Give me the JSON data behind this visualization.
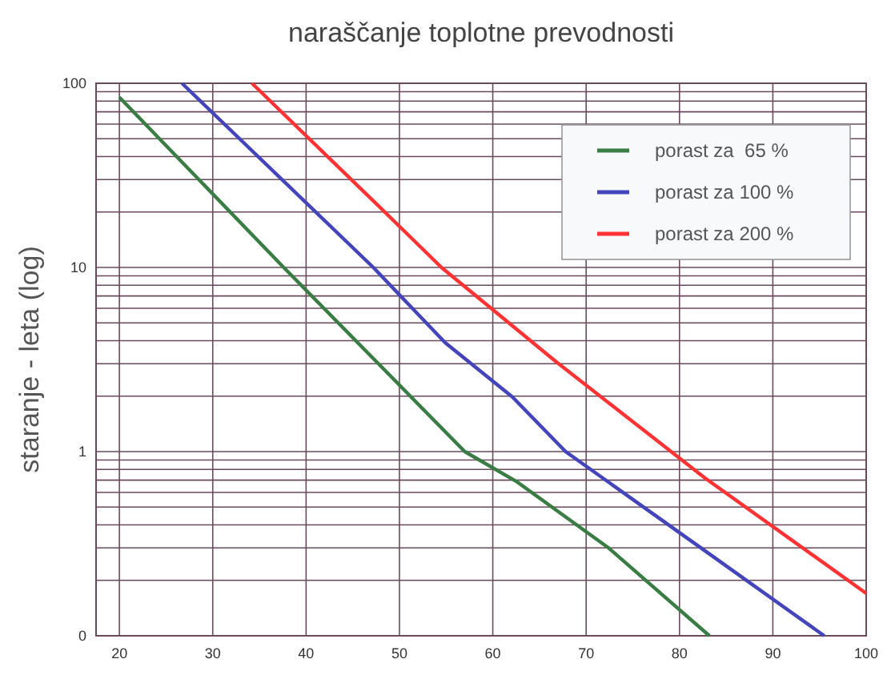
{
  "chart_data": {
    "type": "line",
    "title": "naraščanje toplotne prevodnosti",
    "ylabel": "staranje - leta (log)",
    "log": "y",
    "grid": true,
    "legend": "top right",
    "marker": "none",
    "line_style": "solid",
    "xlim": [
      17.5,
      100
    ],
    "xticks": [
      20,
      30,
      40,
      50,
      60,
      70,
      80,
      90,
      100
    ],
    "ylim": [
      0.1,
      100
    ],
    "yticks": [
      {
        "value": 0.1,
        "label": "0"
      },
      {
        "value": 0.2,
        "label": null
      },
      {
        "value": 0.3,
        "label": null
      },
      {
        "value": 0.4,
        "label": null
      },
      {
        "value": 0.5,
        "label": null
      },
      {
        "value": 0.6,
        "label": null
      },
      {
        "value": 0.7,
        "label": null
      },
      {
        "value": 0.8,
        "label": null
      },
      {
        "value": 0.9,
        "label": null
      },
      1,
      {
        "value": 2,
        "label": null
      },
      {
        "value": 3,
        "label": null
      },
      {
        "value": 4,
        "label": null
      },
      {
        "value": 5,
        "label": null
      },
      {
        "value": 6,
        "label": null
      },
      {
        "value": 7,
        "label": null
      },
      {
        "value": 8,
        "label": null
      },
      {
        "value": 9,
        "label": null
      },
      10,
      {
        "value": 20,
        "label": null
      },
      {
        "value": 30,
        "label": null
      },
      {
        "value": 40,
        "label": null
      },
      {
        "value": 50,
        "label": null
      },
      {
        "value": 60,
        "label": null
      },
      {
        "value": 70,
        "label": null
      },
      {
        "value": 80,
        "label": null
      },
      {
        "value": 90,
        "label": null
      },
      100
    ],
    "series": [
      {
        "name": "porast za  65 %",
        "color": "#3a7d44",
        "x": [
          20,
          37.6,
          57,
          62.5,
          72.4,
          83.2
        ],
        "values": [
          84,
          10,
          1,
          0.69,
          0.3,
          0.1
        ]
      },
      {
        "name": "porast za 100 %",
        "color": "#4444bb",
        "x": [
          26.7,
          47.2,
          54.9,
          62.1,
          67.8,
          82.7,
          95.5
        ],
        "values": [
          100,
          10,
          3.9,
          1.98,
          1,
          0.29,
          0.1
        ]
      },
      {
        "name": "porast za 200 %",
        "color": "#ff3333",
        "x": [
          34.2,
          47.2,
          54.5,
          66.7,
          82.7,
          100
        ],
        "values": [
          100,
          23,
          10,
          3.1,
          0.72,
          0.17
        ]
      }
    ]
  }
}
